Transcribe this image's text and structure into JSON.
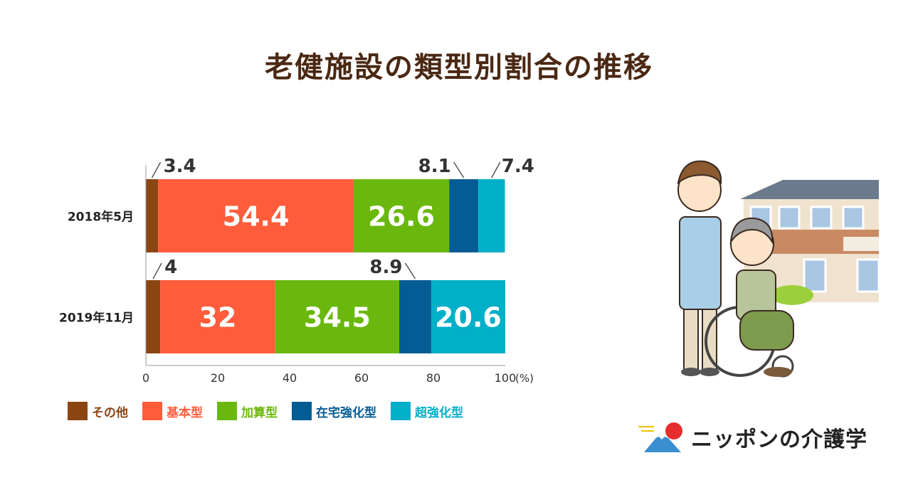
{
  "title": "老健施設の類型別割合の推移",
  "chart_data": {
    "type": "bar",
    "orientation": "horizontal",
    "stacked": true,
    "categories": [
      "2018年5月",
      "2019年11月"
    ],
    "series": [
      {
        "name": "その他",
        "values": [
          3.4,
          4
        ],
        "color": "#8b4513",
        "label_text": [
          "3.4",
          "4"
        ]
      },
      {
        "name": "基本型",
        "values": [
          54.4,
          32
        ],
        "color": "#ff5c3c",
        "label_text": [
          "54.4",
          "32"
        ]
      },
      {
        "name": "加算型",
        "values": [
          26.6,
          34.5
        ],
        "color": "#6ab80e",
        "label_text": [
          "26.6",
          "34.5"
        ]
      },
      {
        "name": "在宅強化型",
        "values": [
          8.1,
          8.9
        ],
        "color": "#045c94",
        "label_text": [
          "8.1",
          "8.9"
        ]
      },
      {
        "name": "超強化型",
        "values": [
          7.4,
          20.6
        ],
        "color": "#00b0c8",
        "label_text": [
          "7.4",
          "20.6"
        ]
      }
    ],
    "xlim": [
      0,
      100
    ],
    "xticks": [
      "0",
      "20",
      "40",
      "60",
      "80",
      "100"
    ],
    "xunit": "(%)",
    "legend_position": "bottom-left",
    "grid": false
  },
  "brand": {
    "name": "ニッポンの介護学"
  }
}
